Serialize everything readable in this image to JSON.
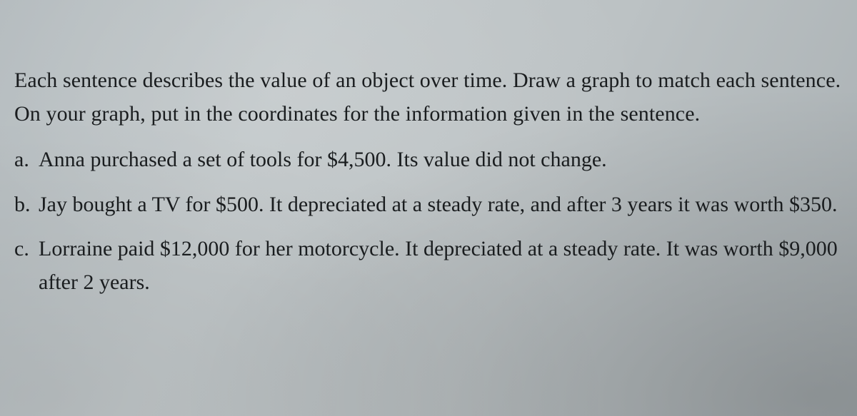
{
  "typography": {
    "font_family": "Georgia, 'Times New Roman', serif",
    "body_font_size_pt": 22,
    "line_height": 1.55,
    "text_color": "#1a1d1f"
  },
  "background": {
    "base_color": "#bcc2c4",
    "gradient_colors": [
      "#b5bcbf",
      "#c2c8ca",
      "#bcc2c4",
      "#a8afb2"
    ]
  },
  "intro": "Each sentence describes the value of an object over time. Draw a graph to match each sentence. On your graph, put in the coordinates for the information given in the sentence.",
  "items": [
    {
      "marker": "a.",
      "text": "Anna purchased a set of tools for $4,500. Its value did not change."
    },
    {
      "marker": "b.",
      "text": "Jay bought a TV for $500. It depreciated at a steady rate, and after 3 years it was worth $350."
    },
    {
      "marker": "c.",
      "text": "Lorraine paid $12,000 for her motorcycle. It depreciated at a steady rate. It was worth $9,000 after 2 years."
    }
  ]
}
